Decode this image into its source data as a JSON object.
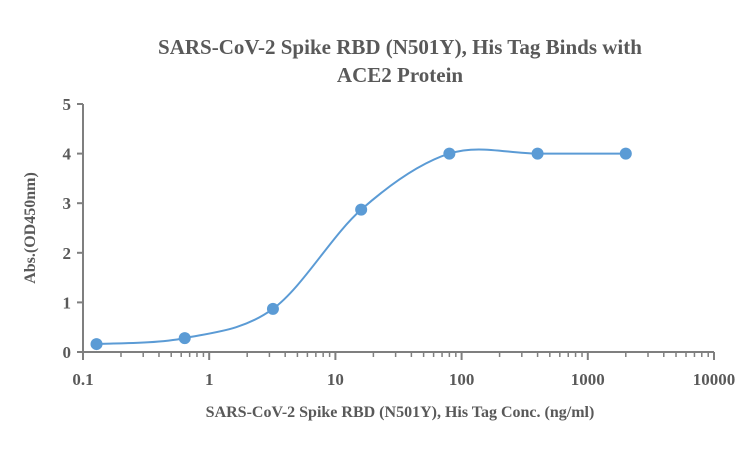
{
  "chart_data": {
    "type": "line",
    "title": "SARS-CoV-2 Spike RBD (N501Y), His Tag Binds with ACE2 Protein",
    "title_lines": [
      "SARS-CoV-2 Spike RBD (N501Y), His Tag Binds with",
      "ACE2 Protein"
    ],
    "xlabel": "SARS-CoV-2 Spike RBD (N501Y), His Tag Conc. (ng/ml)",
    "ylabel": "Abs.(OD450nm)",
    "x_scale": "log",
    "xlim": [
      0.1,
      10000
    ],
    "ylim": [
      0,
      5
    ],
    "x_ticks": [
      "0.1",
      "1",
      "10",
      "100",
      "1000",
      "10000"
    ],
    "y_ticks": [
      "0",
      "1",
      "2",
      "3",
      "4",
      "5"
    ],
    "grid": false,
    "legend": "none",
    "color": "#5B9BD5",
    "series": [
      {
        "x": [
          0.128,
          0.64,
          3.2,
          16,
          80,
          400,
          2000
        ],
        "y": [
          0.16,
          0.28,
          0.87,
          2.87,
          4.0,
          4.0,
          4.0
        ]
      }
    ]
  }
}
